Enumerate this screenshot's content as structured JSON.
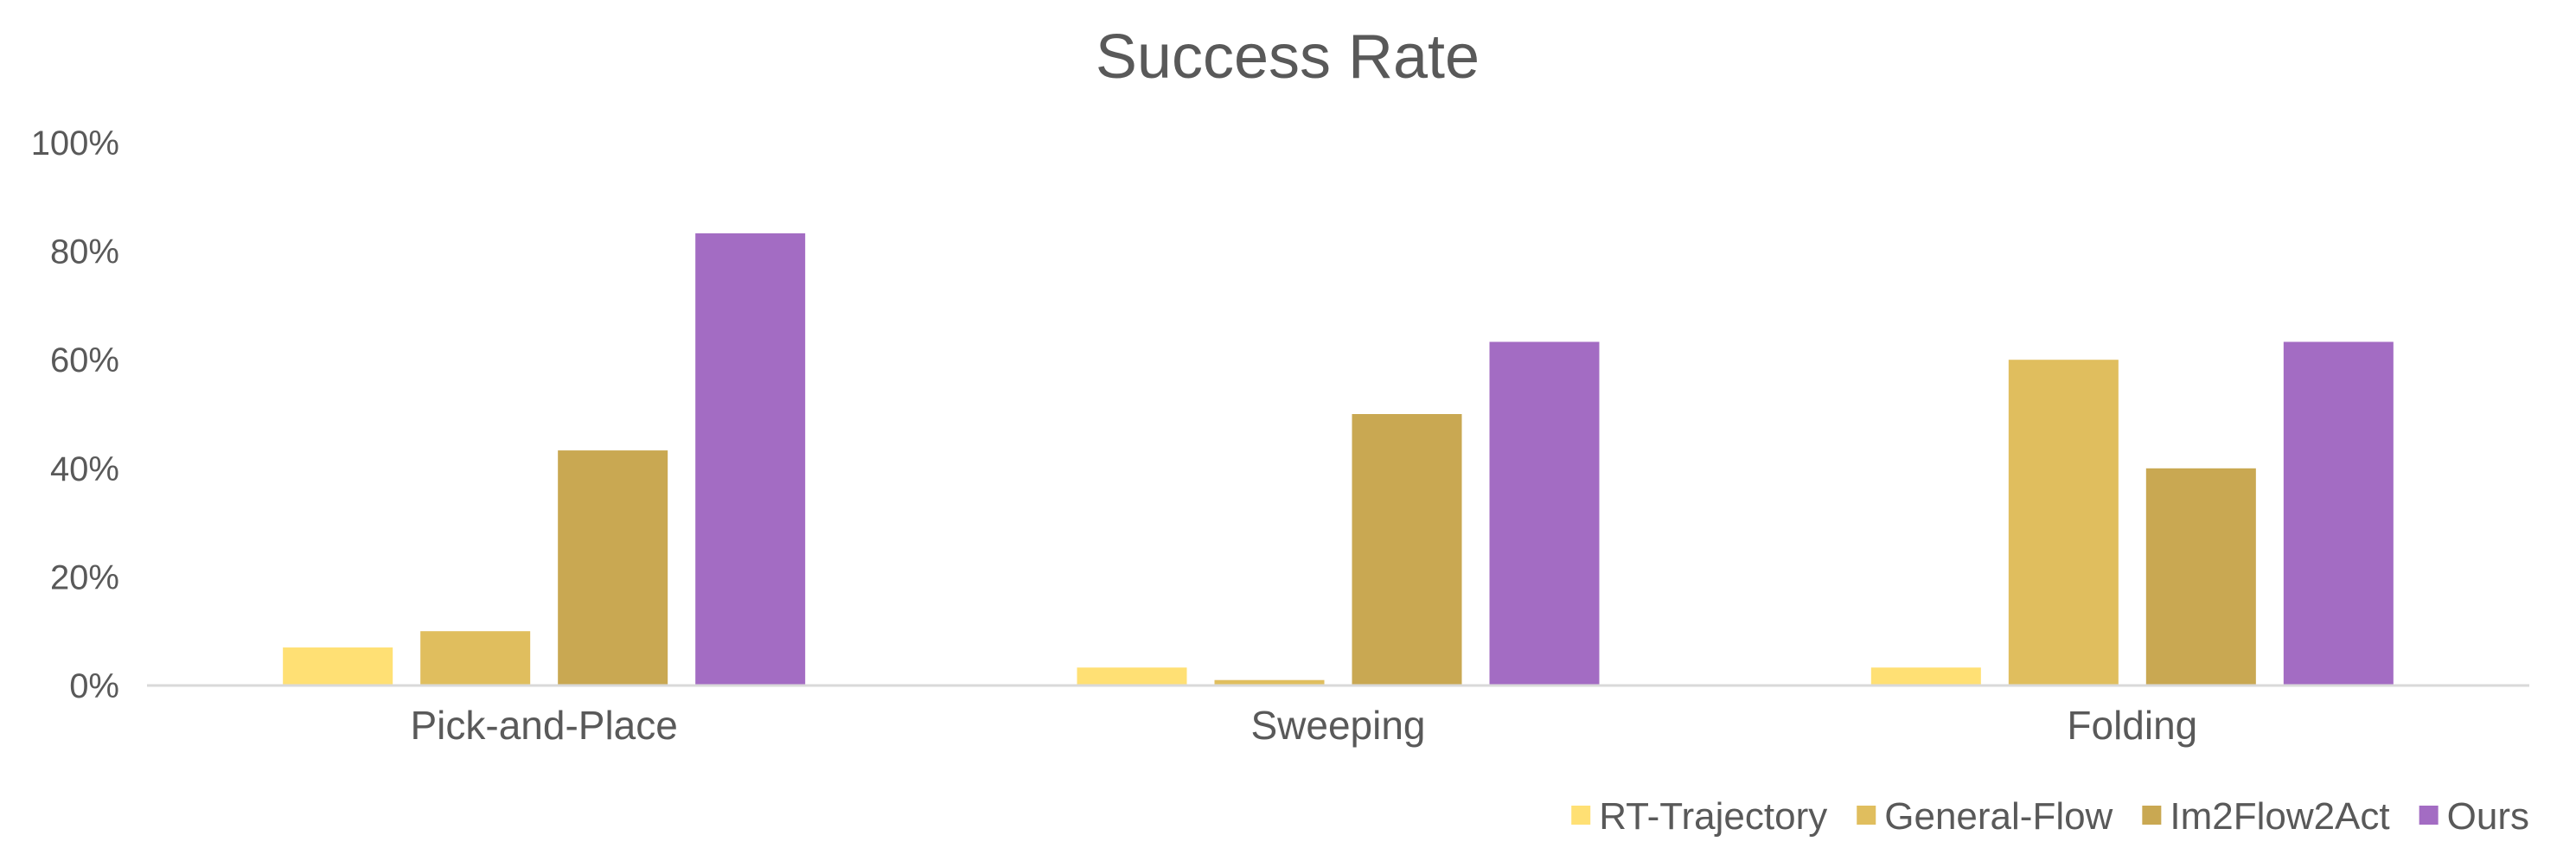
{
  "chart_data": {
    "type": "bar",
    "title": "Success Rate",
    "xlabel": "",
    "ylabel": "",
    "categories": [
      "Pick-and-Place",
      "Sweeping",
      "Folding"
    ],
    "series": [
      {
        "name": "RT-Trajectory",
        "color": "#FFE074",
        "values": [
          7,
          3.3,
          3.3
        ]
      },
      {
        "name": "General-Flow",
        "color": "#E0BE5E",
        "values": [
          10,
          1,
          60
        ]
      },
      {
        "name": "Im2Flow2Act",
        "color": "#C9A852",
        "values": [
          43.3,
          50,
          40
        ]
      },
      {
        "name": "Ours",
        "color": "#A36CC3",
        "values": [
          83.3,
          63.3,
          63.3
        ]
      }
    ],
    "ylim": [
      0,
      100
    ],
    "yticks": [
      "0%",
      "20%",
      "40%",
      "60%",
      "80%",
      "100%"
    ],
    "grid": false,
    "legend": "bottom-right"
  }
}
